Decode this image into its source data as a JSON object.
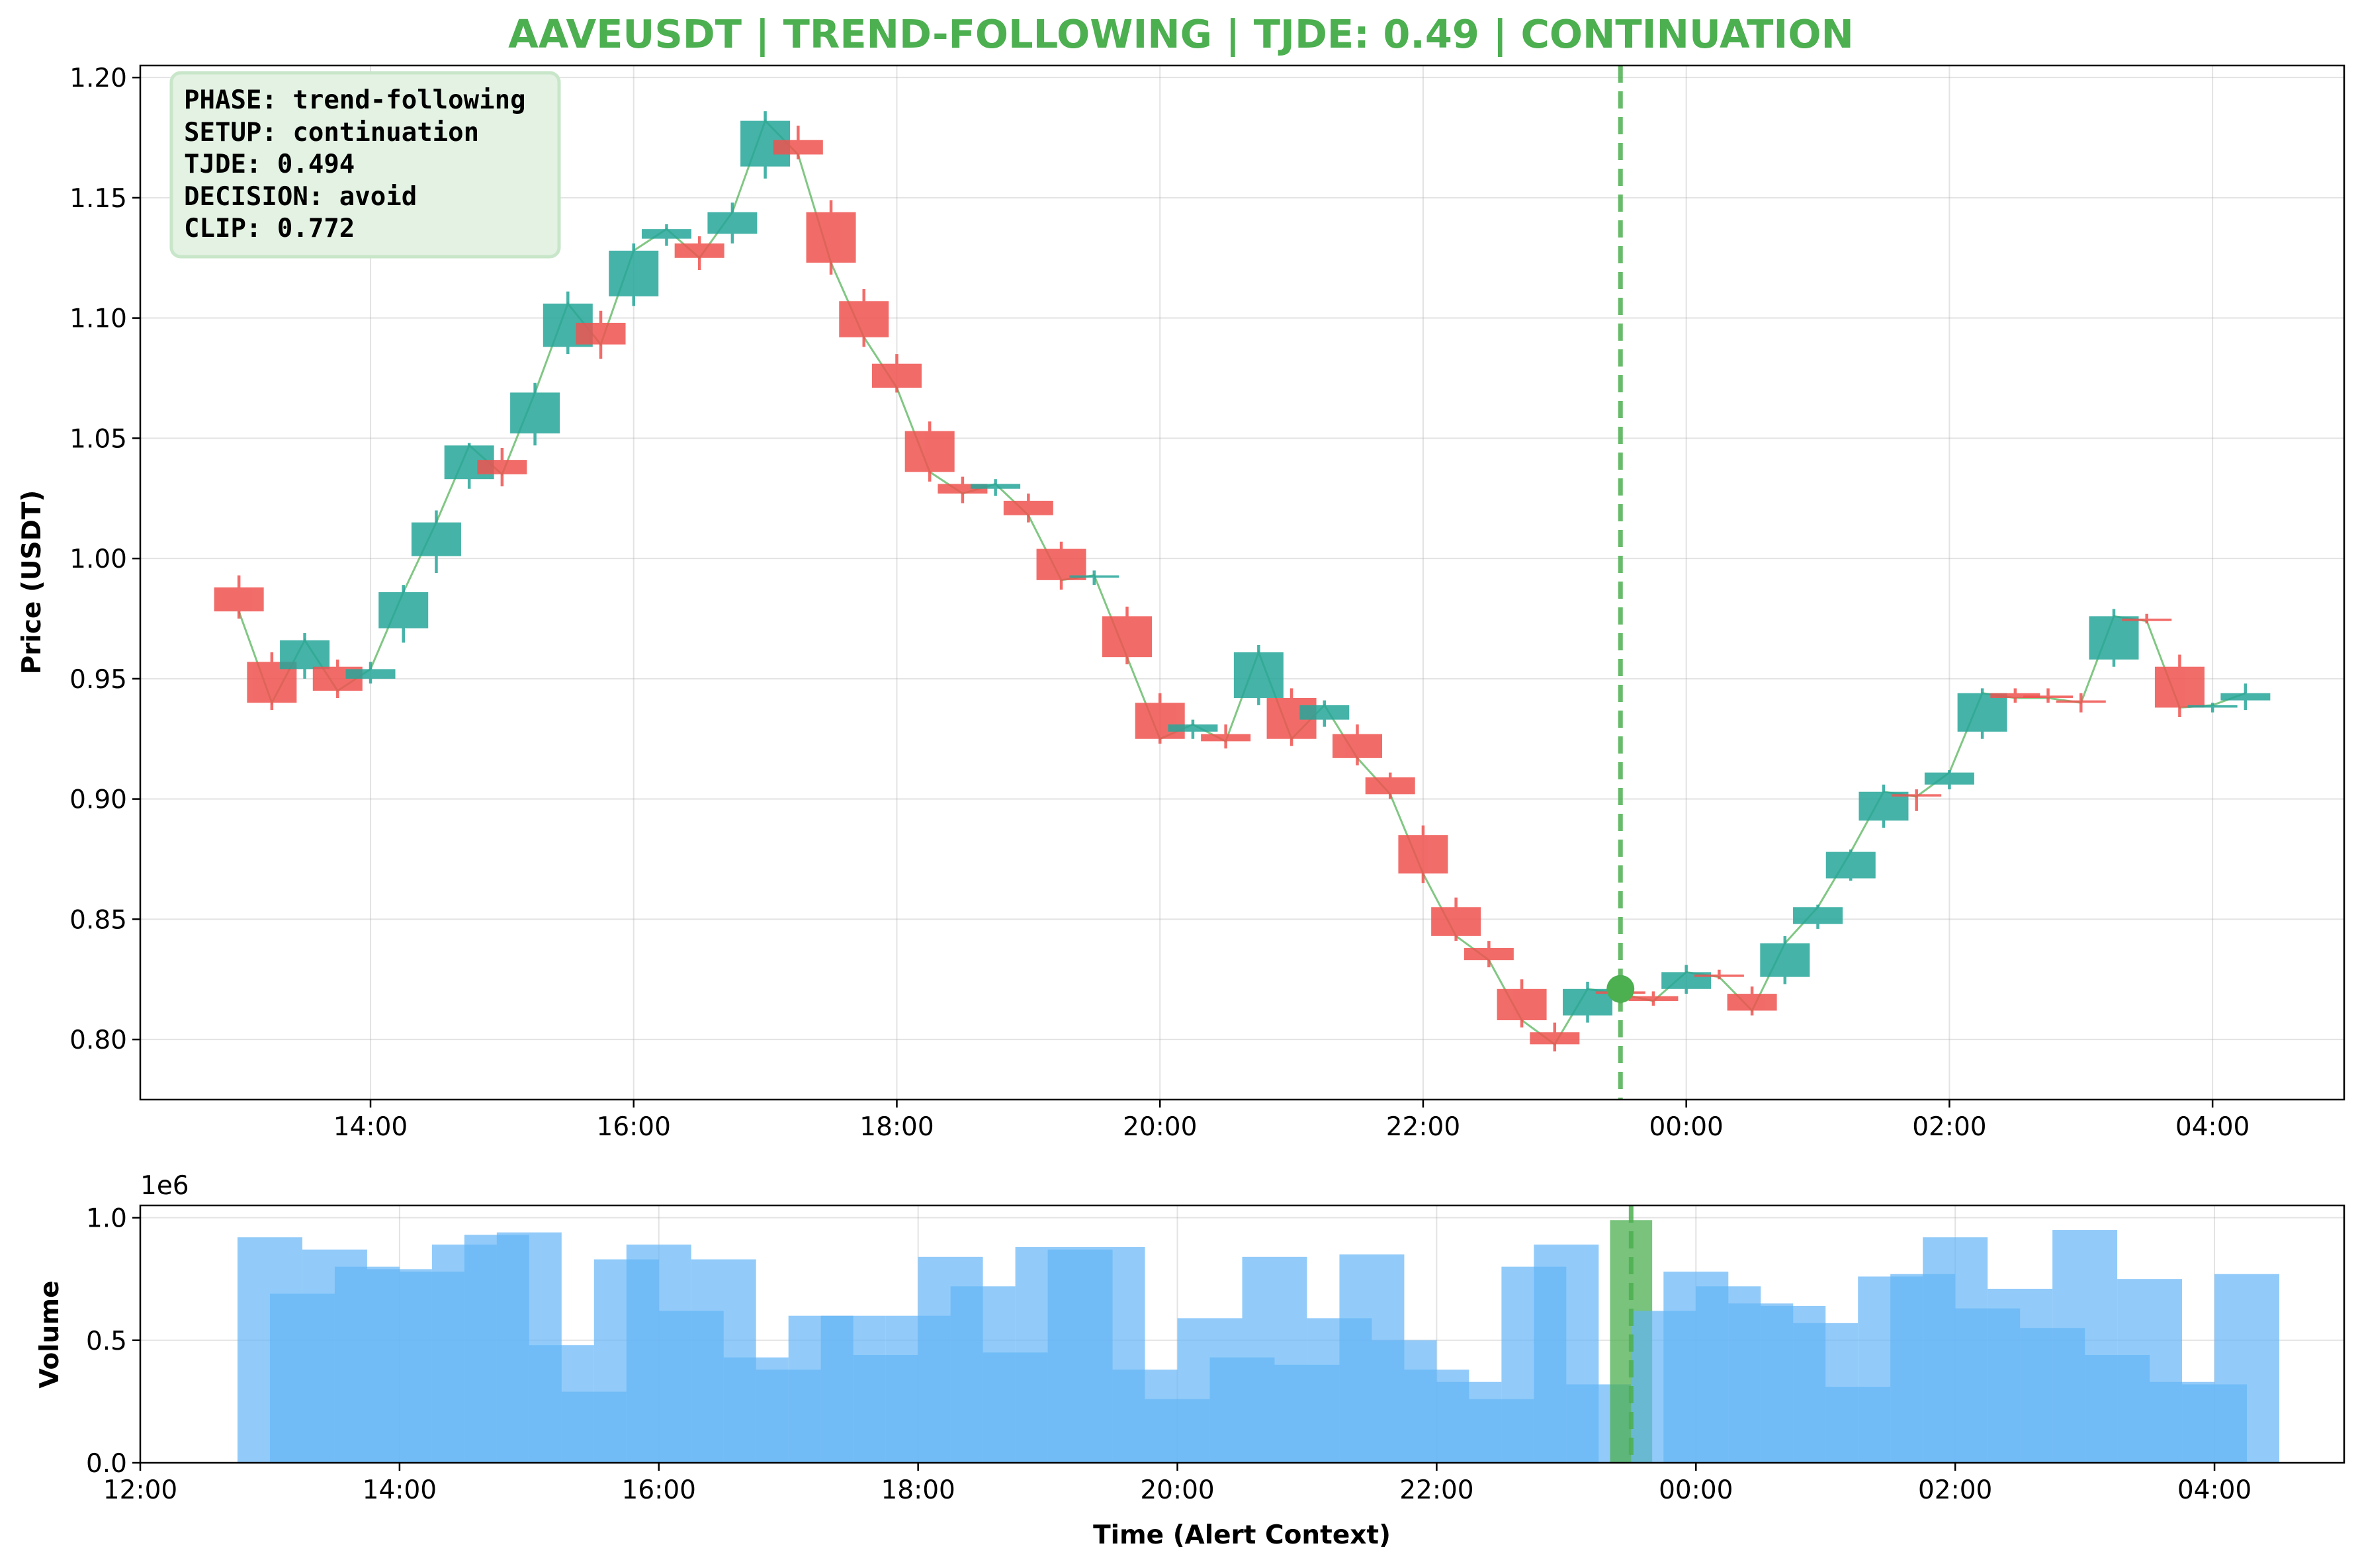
{
  "chart_data": [
    {
      "type": "candlestick",
      "title": "AAVEUSDT | TREND-FOLLOWING | TJDE: 0.49 | CONTINUATION",
      "ylabel": "Price (USDT)",
      "xlabel": "",
      "ylim": [
        0.775,
        1.205
      ],
      "xlim": [
        "12:15",
        "05:00"
      ],
      "grid": true,
      "x_ticks": [
        "14:00",
        "16:00",
        "18:00",
        "20:00",
        "22:00",
        "00:00",
        "02:00",
        "04:00"
      ],
      "y_ticks": [
        "0.80",
        "0.85",
        "0.90",
        "0.95",
        "1.00",
        "1.05",
        "1.10",
        "1.15",
        "1.20"
      ],
      "colors": {
        "up": "#26a69a",
        "down": "#ef5350",
        "close_line": "#4caf50",
        "alert": "#4caf50"
      },
      "candles": [
        {
          "t": "13:00",
          "open": 0.988,
          "high": 0.993,
          "low": 0.975,
          "close": 0.978
        },
        {
          "t": "13:15",
          "open": 0.957,
          "high": 0.961,
          "low": 0.937,
          "close": 0.94
        },
        {
          "t": "13:30",
          "open": 0.954,
          "high": 0.969,
          "low": 0.95,
          "close": 0.966
        },
        {
          "t": "13:45",
          "open": 0.955,
          "high": 0.958,
          "low": 0.942,
          "close": 0.945
        },
        {
          "t": "14:00",
          "open": 0.95,
          "high": 0.957,
          "low": 0.948,
          "close": 0.954
        },
        {
          "t": "14:15",
          "open": 0.971,
          "high": 0.989,
          "low": 0.965,
          "close": 0.986
        },
        {
          "t": "14:30",
          "open": 1.001,
          "high": 1.02,
          "low": 0.994,
          "close": 1.015
        },
        {
          "t": "14:45",
          "open": 1.033,
          "high": 1.048,
          "low": 1.029,
          "close": 1.047
        },
        {
          "t": "15:00",
          "open": 1.041,
          "high": 1.046,
          "low": 1.03,
          "close": 1.035
        },
        {
          "t": "15:15",
          "open": 1.052,
          "high": 1.073,
          "low": 1.047,
          "close": 1.069
        },
        {
          "t": "15:30",
          "open": 1.088,
          "high": 1.111,
          "low": 1.085,
          "close": 1.106
        },
        {
          "t": "15:45",
          "open": 1.098,
          "high": 1.103,
          "low": 1.083,
          "close": 1.089
        },
        {
          "t": "16:00",
          "open": 1.109,
          "high": 1.131,
          "low": 1.105,
          "close": 1.128
        },
        {
          "t": "16:15",
          "open": 1.133,
          "high": 1.139,
          "low": 1.13,
          "close": 1.137
        },
        {
          "t": "16:30",
          "open": 1.131,
          "high": 1.134,
          "low": 1.12,
          "close": 1.125
        },
        {
          "t": "16:45",
          "open": 1.135,
          "high": 1.148,
          "low": 1.131,
          "close": 1.144
        },
        {
          "t": "17:00",
          "open": 1.163,
          "high": 1.186,
          "low": 1.158,
          "close": 1.182
        },
        {
          "t": "17:15",
          "open": 1.174,
          "high": 1.18,
          "low": 1.166,
          "close": 1.168
        },
        {
          "t": "17:30",
          "open": 1.144,
          "high": 1.149,
          "low": 1.118,
          "close": 1.123
        },
        {
          "t": "17:45",
          "open": 1.107,
          "high": 1.112,
          "low": 1.088,
          "close": 1.092
        },
        {
          "t": "18:00",
          "open": 1.081,
          "high": 1.085,
          "low": 1.069,
          "close": 1.071
        },
        {
          "t": "18:15",
          "open": 1.053,
          "high": 1.057,
          "low": 1.032,
          "close": 1.036
        },
        {
          "t": "18:30",
          "open": 1.031,
          "high": 1.034,
          "low": 1.023,
          "close": 1.027
        },
        {
          "t": "18:45",
          "open": 1.029,
          "high": 1.033,
          "low": 1.026,
          "close": 1.031
        },
        {
          "t": "19:00",
          "open": 1.024,
          "high": 1.027,
          "low": 1.015,
          "close": 1.018
        },
        {
          "t": "19:15",
          "open": 1.004,
          "high": 1.007,
          "low": 0.987,
          "close": 0.991
        },
        {
          "t": "19:30",
          "open": 0.992,
          "high": 0.995,
          "low": 0.989,
          "close": 0.993
        },
        {
          "t": "19:45",
          "open": 0.976,
          "high": 0.98,
          "low": 0.956,
          "close": 0.959
        },
        {
          "t": "20:00",
          "open": 0.94,
          "high": 0.944,
          "low": 0.923,
          "close": 0.925
        },
        {
          "t": "20:15",
          "open": 0.928,
          "high": 0.933,
          "low": 0.925,
          "close": 0.931
        },
        {
          "t": "20:30",
          "open": 0.927,
          "high": 0.931,
          "low": 0.921,
          "close": 0.924
        },
        {
          "t": "20:45",
          "open": 0.942,
          "high": 0.964,
          "low": 0.939,
          "close": 0.961
        },
        {
          "t": "21:00",
          "open": 0.942,
          "high": 0.946,
          "low": 0.922,
          "close": 0.925
        },
        {
          "t": "21:15",
          "open": 0.933,
          "high": 0.941,
          "low": 0.93,
          "close": 0.939
        },
        {
          "t": "21:30",
          "open": 0.927,
          "high": 0.931,
          "low": 0.914,
          "close": 0.917
        },
        {
          "t": "21:45",
          "open": 0.909,
          "high": 0.911,
          "low": 0.9,
          "close": 0.902
        },
        {
          "t": "22:00",
          "open": 0.885,
          "high": 0.889,
          "low": 0.865,
          "close": 0.869
        },
        {
          "t": "22:15",
          "open": 0.855,
          "high": 0.859,
          "low": 0.841,
          "close": 0.843
        },
        {
          "t": "22:30",
          "open": 0.838,
          "high": 0.841,
          "low": 0.83,
          "close": 0.833
        },
        {
          "t": "22:45",
          "open": 0.821,
          "high": 0.825,
          "low": 0.805,
          "close": 0.808
        },
        {
          "t": "23:00",
          "open": 0.803,
          "high": 0.807,
          "low": 0.795,
          "close": 0.798
        },
        {
          "t": "23:15",
          "open": 0.81,
          "high": 0.824,
          "low": 0.807,
          "close": 0.821
        },
        {
          "t": "23:30",
          "open": 0.82,
          "high": 0.823,
          "low": 0.815,
          "close": 0.819
        },
        {
          "t": "23:45",
          "open": 0.818,
          "high": 0.82,
          "low": 0.814,
          "close": 0.816
        },
        {
          "t": "00:00",
          "open": 0.821,
          "high": 0.831,
          "low": 0.819,
          "close": 0.828
        },
        {
          "t": "00:15",
          "open": 0.827,
          "high": 0.829,
          "low": 0.825,
          "close": 0.826
        },
        {
          "t": "00:30",
          "open": 0.819,
          "high": 0.822,
          "low": 0.81,
          "close": 0.812
        },
        {
          "t": "00:45",
          "open": 0.826,
          "high": 0.843,
          "low": 0.823,
          "close": 0.84
        },
        {
          "t": "01:00",
          "open": 0.848,
          "high": 0.856,
          "low": 0.846,
          "close": 0.855
        },
        {
          "t": "01:15",
          "open": 0.867,
          "high": 0.879,
          "low": 0.866,
          "close": 0.878
        },
        {
          "t": "01:30",
          "open": 0.891,
          "high": 0.906,
          "low": 0.888,
          "close": 0.903
        },
        {
          "t": "01:45",
          "open": 0.902,
          "high": 0.904,
          "low": 0.895,
          "close": 0.901
        },
        {
          "t": "02:00",
          "open": 0.906,
          "high": 0.912,
          "low": 0.904,
          "close": 0.911
        },
        {
          "t": "02:15",
          "open": 0.928,
          "high": 0.946,
          "low": 0.925,
          "close": 0.944
        },
        {
          "t": "02:30",
          "open": 0.944,
          "high": 0.946,
          "low": 0.94,
          "close": 0.942
        },
        {
          "t": "02:45",
          "open": 0.943,
          "high": 0.946,
          "low": 0.94,
          "close": 0.942
        },
        {
          "t": "03:00",
          "open": 0.941,
          "high": 0.944,
          "low": 0.936,
          "close": 0.94
        },
        {
          "t": "03:15",
          "open": 0.958,
          "high": 0.979,
          "low": 0.955,
          "close": 0.976
        },
        {
          "t": "03:30",
          "open": 0.975,
          "high": 0.977,
          "low": 0.973,
          "close": 0.974
        },
        {
          "t": "03:45",
          "open": 0.955,
          "high": 0.96,
          "low": 0.934,
          "close": 0.938
        },
        {
          "t": "04:00",
          "open": 0.938,
          "high": 0.94,
          "low": 0.936,
          "close": 0.939
        },
        {
          "t": "04:15",
          "open": 0.941,
          "high": 0.948,
          "low": 0.937,
          "close": 0.944
        }
      ],
      "alert": {
        "t": "23:30",
        "price": 0.821
      },
      "info_box": {
        "lines": [
          "PHASE: trend-following",
          "SETUP: continuation",
          "TJDE: 0.494",
          "DECISION: avoid",
          "CLIP: 0.772"
        ],
        "placement": "top-left"
      }
    },
    {
      "type": "bar",
      "ylabel": "Volume",
      "xlabel": "Time (Alert Context)",
      "offset_text": "1e6",
      "ylim": [
        0,
        1050000
      ],
      "xlim": [
        "12:00",
        "05:00"
      ],
      "grid": true,
      "x_ticks": [
        "12:00",
        "14:00",
        "16:00",
        "18:00",
        "20:00",
        "22:00",
        "00:00",
        "02:00",
        "04:00"
      ],
      "y_ticks": [
        "0.0",
        "0.5",
        "1.0"
      ],
      "colors": {
        "bar": "#64b5f6",
        "alert_bar": "#4caf50"
      },
      "bars": [
        {
          "t": "13:00",
          "value": 920000
        },
        {
          "t": "13:15",
          "value": 690000
        },
        {
          "t": "13:30",
          "value": 870000
        },
        {
          "t": "13:45",
          "value": 800000
        },
        {
          "t": "14:00",
          "value": 790000
        },
        {
          "t": "14:15",
          "value": 780000
        },
        {
          "t": "14:30",
          "value": 890000
        },
        {
          "t": "14:45",
          "value": 930000
        },
        {
          "t": "15:00",
          "value": 940000
        },
        {
          "t": "15:15",
          "value": 480000
        },
        {
          "t": "15:30",
          "value": 290000
        },
        {
          "t": "15:45",
          "value": 830000
        },
        {
          "t": "16:00",
          "value": 890000
        },
        {
          "t": "16:15",
          "value": 620000
        },
        {
          "t": "16:30",
          "value": 830000
        },
        {
          "t": "16:45",
          "value": 430000
        },
        {
          "t": "17:00",
          "value": 380000
        },
        {
          "t": "17:15",
          "value": 600000
        },
        {
          "t": "17:30",
          "value": 600000
        },
        {
          "t": "17:45",
          "value": 440000
        },
        {
          "t": "18:00",
          "value": 600000
        },
        {
          "t": "18:15",
          "value": 840000
        },
        {
          "t": "18:30",
          "value": 720000
        },
        {
          "t": "18:45",
          "value": 450000
        },
        {
          "t": "19:00",
          "value": 880000
        },
        {
          "t": "19:15",
          "value": 870000
        },
        {
          "t": "19:30",
          "value": 880000
        },
        {
          "t": "19:45",
          "value": 380000
        },
        {
          "t": "20:00",
          "value": 260000
        },
        {
          "t": "20:15",
          "value": 590000
        },
        {
          "t": "20:30",
          "value": 430000
        },
        {
          "t": "20:45",
          "value": 840000
        },
        {
          "t": "21:00",
          "value": 400000
        },
        {
          "t": "21:15",
          "value": 590000
        },
        {
          "t": "21:30",
          "value": 850000
        },
        {
          "t": "21:45",
          "value": 500000
        },
        {
          "t": "22:00",
          "value": 380000
        },
        {
          "t": "22:15",
          "value": 330000
        },
        {
          "t": "22:30",
          "value": 260000
        },
        {
          "t": "22:45",
          "value": 800000
        },
        {
          "t": "23:00",
          "value": 890000
        },
        {
          "t": "23:15",
          "value": 320000
        },
        {
          "t": "23:30",
          "value": 990000
        },
        {
          "t": "23:45",
          "value": 620000
        },
        {
          "t": "00:00",
          "value": 780000
        },
        {
          "t": "00:15",
          "value": 720000
        },
        {
          "t": "00:30",
          "value": 650000
        },
        {
          "t": "00:45",
          "value": 640000
        },
        {
          "t": "01:00",
          "value": 570000
        },
        {
          "t": "01:15",
          "value": 310000
        },
        {
          "t": "01:30",
          "value": 760000
        },
        {
          "t": "01:45",
          "value": 770000
        },
        {
          "t": "02:00",
          "value": 920000
        },
        {
          "t": "02:15",
          "value": 630000
        },
        {
          "t": "02:30",
          "value": 710000
        },
        {
          "t": "02:45",
          "value": 550000
        },
        {
          "t": "03:00",
          "value": 950000
        },
        {
          "t": "03:15",
          "value": 440000
        },
        {
          "t": "03:30",
          "value": 750000
        },
        {
          "t": "03:45",
          "value": 330000
        },
        {
          "t": "04:00",
          "value": 320000
        },
        {
          "t": "04:15",
          "value": 770000
        }
      ],
      "alert": {
        "t": "23:30"
      }
    }
  ]
}
